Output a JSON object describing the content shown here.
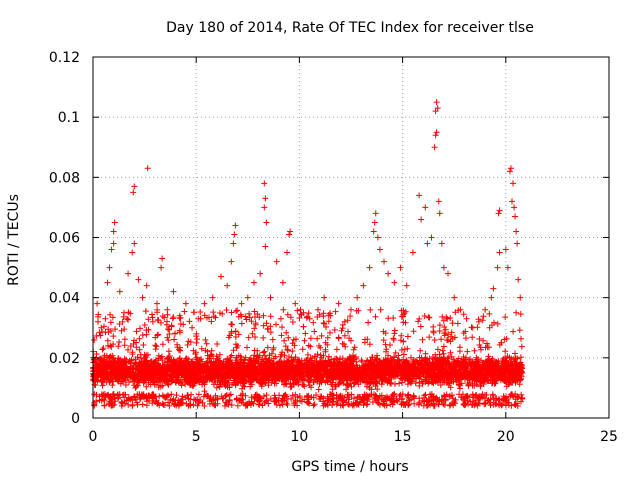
{
  "chart_data": {
    "type": "scatter",
    "title": "Day 180 of 2014, Rate Of TEC Index for receiver tlse",
    "xlabel": "GPS time / hours",
    "ylabel": "ROTI / TECUs",
    "xlim": [
      0,
      25
    ],
    "ylim": [
      0,
      0.12
    ],
    "x_ticks": [
      0,
      5,
      10,
      15,
      20,
      25
    ],
    "x_tick_labels": [
      "0",
      "5",
      "10",
      "15",
      "20",
      "25"
    ],
    "y_ticks": [
      0,
      0.02,
      0.04,
      0.06,
      0.08,
      0.1,
      0.12
    ],
    "y_tick_labels": [
      "0",
      "0.02",
      "0.04",
      "0.06",
      "0.08",
      "0.1",
      "0.12"
    ],
    "grid": true,
    "marker": "+",
    "series": [
      {
        "name": "ROTI",
        "color": "#ff0000",
        "band": {
          "x_start": 0,
          "x_end": 20.8,
          "y_floor": 0.004,
          "y_core_low": 0.008,
          "y_core_high": 0.022
        },
        "points": [
          [
            0.2,
            0.038
          ],
          [
            0.4,
            0.03
          ],
          [
            0.6,
            0.033
          ],
          [
            0.7,
            0.045
          ],
          [
            0.8,
            0.05
          ],
          [
            0.9,
            0.056
          ],
          [
            1.0,
            0.058
          ],
          [
            1.0,
            0.062
          ],
          [
            1.05,
            0.065
          ],
          [
            1.3,
            0.042
          ],
          [
            1.5,
            0.035
          ],
          [
            1.7,
            0.048
          ],
          [
            1.9,
            0.055
          ],
          [
            2.0,
            0.058
          ],
          [
            2.0,
            0.077
          ],
          [
            1.95,
            0.075
          ],
          [
            2.2,
            0.046
          ],
          [
            2.4,
            0.04
          ],
          [
            2.6,
            0.044
          ],
          [
            2.65,
            0.083
          ],
          [
            2.9,
            0.032
          ],
          [
            3.1,
            0.038
          ],
          [
            3.3,
            0.05
          ],
          [
            3.35,
            0.053
          ],
          [
            3.6,
            0.036
          ],
          [
            3.9,
            0.042
          ],
          [
            4.2,
            0.034
          ],
          [
            4.5,
            0.038
          ],
          [
            4.8,
            0.03
          ],
          [
            5.1,
            0.033
          ],
          [
            5.4,
            0.038
          ],
          [
            5.8,
            0.04
          ],
          [
            6.2,
            0.047
          ],
          [
            6.5,
            0.044
          ],
          [
            6.7,
            0.052
          ],
          [
            6.8,
            0.058
          ],
          [
            6.85,
            0.061
          ],
          [
            6.9,
            0.064
          ],
          [
            7.2,
            0.038
          ],
          [
            7.5,
            0.04
          ],
          [
            7.8,
            0.045
          ],
          [
            8.1,
            0.048
          ],
          [
            8.3,
            0.07
          ],
          [
            8.35,
            0.073
          ],
          [
            8.3,
            0.078
          ],
          [
            8.4,
            0.065
          ],
          [
            8.35,
            0.057
          ],
          [
            8.6,
            0.04
          ],
          [
            8.9,
            0.052
          ],
          [
            9.2,
            0.045
          ],
          [
            9.4,
            0.055
          ],
          [
            9.5,
            0.061
          ],
          [
            9.55,
            0.062
          ],
          [
            9.8,
            0.038
          ],
          [
            10.2,
            0.035
          ],
          [
            10.5,
            0.033
          ],
          [
            10.9,
            0.036
          ],
          [
            11.2,
            0.04
          ],
          [
            11.5,
            0.034
          ],
          [
            11.9,
            0.038
          ],
          [
            12.2,
            0.032
          ],
          [
            12.5,
            0.036
          ],
          [
            12.8,
            0.04
          ],
          [
            13.1,
            0.044
          ],
          [
            13.4,
            0.05
          ],
          [
            13.6,
            0.062
          ],
          [
            13.65,
            0.065
          ],
          [
            13.7,
            0.068
          ],
          [
            13.8,
            0.06
          ],
          [
            13.9,
            0.056
          ],
          [
            14.1,
            0.052
          ],
          [
            14.3,
            0.048
          ],
          [
            14.6,
            0.045
          ],
          [
            14.9,
            0.05
          ],
          [
            15.2,
            0.044
          ],
          [
            15.5,
            0.055
          ],
          [
            15.8,
            0.074
          ],
          [
            15.9,
            0.066
          ],
          [
            16.1,
            0.07
          ],
          [
            16.2,
            0.058
          ],
          [
            16.4,
            0.06
          ],
          [
            16.55,
            0.09
          ],
          [
            16.6,
            0.094
          ],
          [
            16.65,
            0.095
          ],
          [
            16.6,
            0.102
          ],
          [
            16.7,
            0.103
          ],
          [
            16.65,
            0.105
          ],
          [
            16.75,
            0.072
          ],
          [
            16.8,
            0.068
          ],
          [
            16.9,
            0.058
          ],
          [
            17.0,
            0.05
          ],
          [
            17.2,
            0.048
          ],
          [
            17.5,
            0.04
          ],
          [
            17.8,
            0.036
          ],
          [
            18.1,
            0.033
          ],
          [
            18.4,
            0.03
          ],
          [
            18.7,
            0.032
          ],
          [
            19.0,
            0.036
          ],
          [
            19.3,
            0.04
          ],
          [
            19.4,
            0.043
          ],
          [
            19.6,
            0.05
          ],
          [
            19.7,
            0.055
          ],
          [
            19.65,
            0.068
          ],
          [
            19.7,
            0.069
          ],
          [
            20.0,
            0.056
          ],
          [
            20.1,
            0.05
          ],
          [
            20.2,
            0.082
          ],
          [
            20.25,
            0.083
          ],
          [
            20.35,
            0.078
          ],
          [
            20.3,
            0.072
          ],
          [
            20.4,
            0.07
          ],
          [
            20.45,
            0.067
          ],
          [
            20.5,
            0.062
          ],
          [
            20.55,
            0.058
          ],
          [
            20.6,
            0.046
          ],
          [
            20.7,
            0.04
          ]
        ]
      }
    ]
  }
}
